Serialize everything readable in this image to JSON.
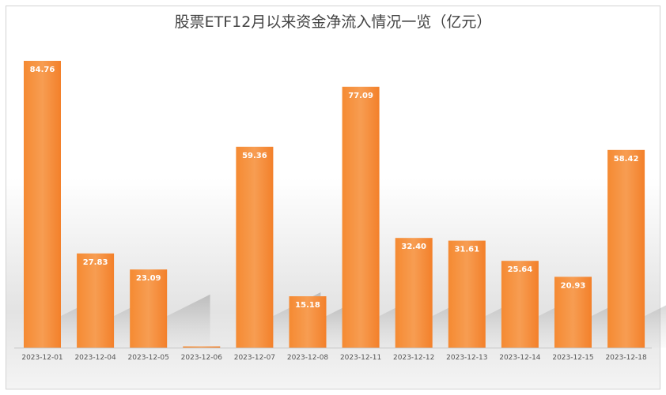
{
  "chart_data": {
    "type": "bar",
    "title": "股票ETF12月以来资金净流入情况一览（亿元）",
    "categories": [
      "2023-12-01",
      "2023-12-04",
      "2023-12-05",
      "2023-12-06",
      "2023-12-07",
      "2023-12-08",
      "2023-12-11",
      "2023-12-12",
      "2023-12-13",
      "2023-12-14",
      "2023-12-15",
      "2023-12-18"
    ],
    "values": [
      84.76,
      27.83,
      23.09,
      0.3,
      59.36,
      15.18,
      77.09,
      32.4,
      31.61,
      25.64,
      20.93,
      58.42
    ],
    "labels": [
      "84.76",
      "27.83",
      "23.09",
      "",
      "59.36",
      "15.18",
      "77.09",
      "32.40",
      "31.61",
      "25.64",
      "20.93",
      "58.42"
    ],
    "ylim": [
      0,
      84.76
    ],
    "grid": false,
    "colors": {
      "bar": "#f5822a",
      "bar_light": "#f79d52"
    }
  }
}
